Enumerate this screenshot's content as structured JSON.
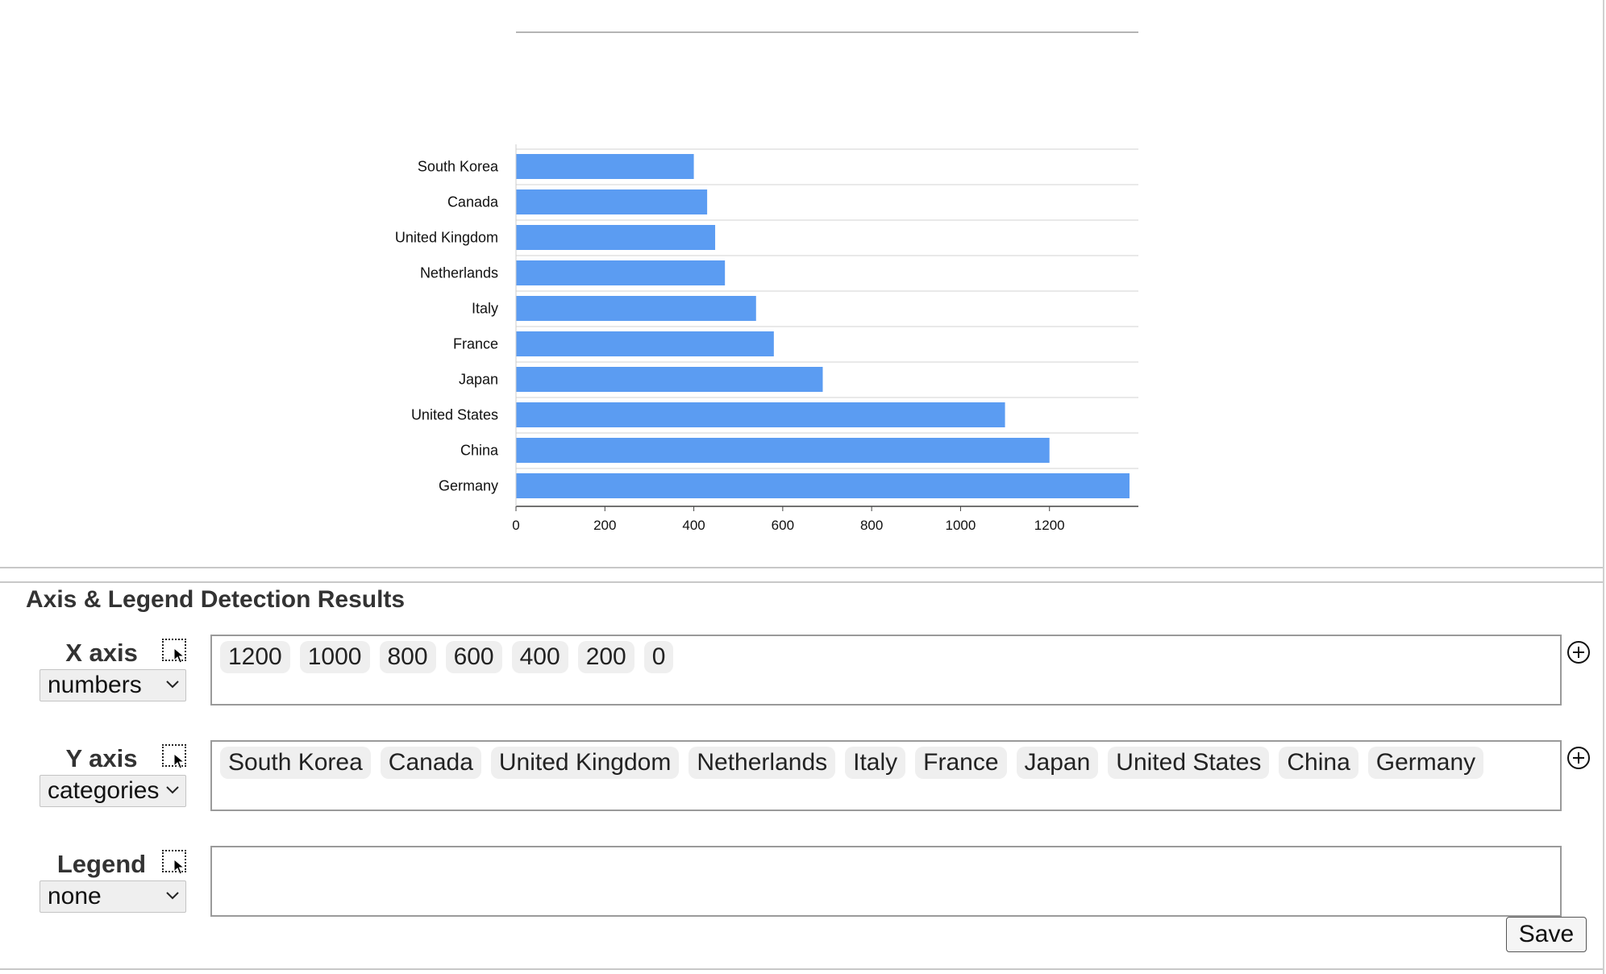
{
  "chart_data": {
    "type": "bar",
    "orientation": "horizontal",
    "categories": [
      "South Korea",
      "Canada",
      "United Kingdom",
      "Netherlands",
      "Italy",
      "France",
      "Japan",
      "United States",
      "China",
      "Germany"
    ],
    "values": [
      400,
      430,
      448,
      470,
      540,
      580,
      690,
      1100,
      1200,
      1380
    ],
    "x_ticks": [
      "0",
      "200",
      "400",
      "600",
      "800",
      "1000",
      "1200"
    ],
    "xlim": [
      0,
      1400
    ],
    "title": "",
    "xlabel": "",
    "ylabel": "",
    "grid": true,
    "bar_color": "#5b9cf2"
  },
  "results": {
    "title": "Axis & Legend Detection Results",
    "x_axis": {
      "label": "X axis",
      "type": "numbers",
      "tags": [
        "1200",
        "1000",
        "800",
        "600",
        "400",
        "200",
        "0"
      ]
    },
    "y_axis": {
      "label": "Y axis",
      "type": "categories",
      "tags": [
        "South Korea",
        "Canada",
        "United Kingdom",
        "Netherlands",
        "Italy",
        "France",
        "Japan",
        "United States",
        "China",
        "Germany"
      ]
    },
    "legend": {
      "label": "Legend",
      "type": "none",
      "tags": []
    },
    "save_label": "Save"
  },
  "icons": {
    "select_region": "select-region-icon",
    "add": "plus-circle-icon",
    "dropdown": "chevron-down-icon"
  }
}
